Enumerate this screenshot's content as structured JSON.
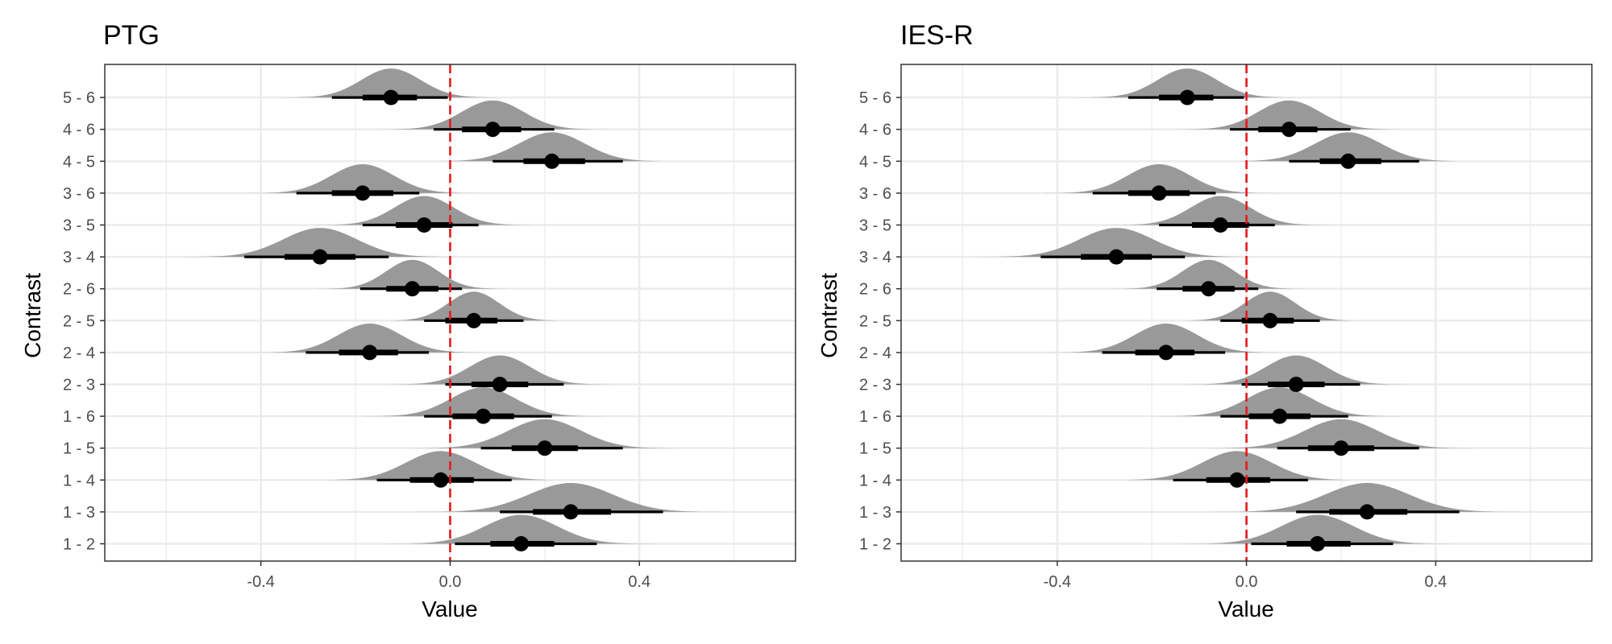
{
  "colors": {
    "density_fill": "#999999",
    "interval": "#000000",
    "reference_line": "#e41a1c",
    "grid_major": "#ebebeb",
    "panel_border": "#333333",
    "background": "#ffffff"
  },
  "chart_data": [
    {
      "type": "halfeye",
      "title": "PTG",
      "xlabel": "Value",
      "ylabel": "Contrast",
      "xlim": [
        -0.73,
        0.73
      ],
      "x_ticks": [
        -0.4,
        0.0,
        0.4
      ],
      "x_tick_labels": [
        "-0.4",
        "0.0",
        "0.4"
      ],
      "reference_x": 0.0,
      "reference_style": "dashed",
      "grid": true,
      "legend": "none",
      "categories": [
        "1 - 2",
        "1 - 3",
        "1 - 4",
        "1 - 5",
        "1 - 6",
        "2 - 3",
        "2 - 4",
        "2 - 5",
        "2 - 6",
        "3 - 4",
        "3 - 5",
        "3 - 6",
        "4 - 5",
        "4 - 6",
        "5 - 6"
      ],
      "median": [
        0.15,
        0.255,
        -0.02,
        0.2,
        0.07,
        0.105,
        -0.17,
        0.05,
        -0.08,
        -0.275,
        -0.055,
        -0.185,
        0.215,
        0.09,
        -0.125
      ],
      "interval_66": [
        [
          0.085,
          0.22
        ],
        [
          0.175,
          0.34
        ],
        [
          -0.085,
          0.05
        ],
        [
          0.13,
          0.27
        ],
        [
          0.005,
          0.135
        ],
        [
          0.045,
          0.165
        ],
        [
          -0.235,
          -0.11
        ],
        [
          -0.01,
          0.1
        ],
        [
          -0.135,
          -0.025
        ],
        [
          -0.35,
          -0.2
        ],
        [
          -0.115,
          0.005
        ],
        [
          -0.25,
          -0.12
        ],
        [
          0.155,
          0.285
        ],
        [
          0.025,
          0.15
        ],
        [
          -0.185,
          -0.07
        ]
      ],
      "interval_95": [
        [
          0.01,
          0.31
        ],
        [
          0.105,
          0.45
        ],
        [
          -0.155,
          0.13
        ],
        [
          0.065,
          0.365
        ],
        [
          -0.055,
          0.215
        ],
        [
          -0.01,
          0.24
        ],
        [
          -0.305,
          -0.045
        ],
        [
          -0.055,
          0.155
        ],
        [
          -0.19,
          0.025
        ],
        [
          -0.435,
          -0.13
        ],
        [
          -0.185,
          0.06
        ],
        [
          -0.325,
          -0.065
        ],
        [
          0.09,
          0.365
        ],
        [
          -0.035,
          0.22
        ],
        [
          -0.25,
          -0.005
        ]
      ]
    },
    {
      "type": "halfeye",
      "title": "IES-R",
      "xlabel": "Value",
      "ylabel": "Contrast",
      "xlim": [
        -0.73,
        0.73
      ],
      "x_ticks": [
        -0.4,
        0.0,
        0.4
      ],
      "x_tick_labels": [
        "-0.4",
        "0.0",
        "0.4"
      ],
      "reference_x": 0.0,
      "reference_style": "dashed",
      "grid": true,
      "legend": "none",
      "categories": [
        "1 - 2",
        "1 - 3",
        "1 - 4",
        "1 - 5",
        "1 - 6",
        "2 - 3",
        "2 - 4",
        "2 - 5",
        "2 - 6",
        "3 - 4",
        "3 - 5",
        "3 - 6",
        "4 - 5",
        "4 - 6",
        "5 - 6"
      ],
      "median": [
        0.15,
        0.255,
        -0.02,
        0.2,
        0.07,
        0.105,
        -0.17,
        0.05,
        -0.08,
        -0.275,
        -0.055,
        -0.185,
        0.215,
        0.09,
        -0.125
      ],
      "interval_66": [
        [
          0.085,
          0.22
        ],
        [
          0.175,
          0.34
        ],
        [
          -0.085,
          0.05
        ],
        [
          0.13,
          0.27
        ],
        [
          0.005,
          0.135
        ],
        [
          0.045,
          0.165
        ],
        [
          -0.235,
          -0.11
        ],
        [
          -0.01,
          0.1
        ],
        [
          -0.135,
          -0.025
        ],
        [
          -0.35,
          -0.2
        ],
        [
          -0.115,
          0.005
        ],
        [
          -0.25,
          -0.12
        ],
        [
          0.155,
          0.285
        ],
        [
          0.025,
          0.15
        ],
        [
          -0.185,
          -0.07
        ]
      ],
      "interval_95": [
        [
          0.01,
          0.31
        ],
        [
          0.105,
          0.45
        ],
        [
          -0.155,
          0.13
        ],
        [
          0.065,
          0.365
        ],
        [
          -0.055,
          0.215
        ],
        [
          -0.01,
          0.24
        ],
        [
          -0.305,
          -0.045
        ],
        [
          -0.055,
          0.155
        ],
        [
          -0.19,
          0.025
        ],
        [
          -0.435,
          -0.13
        ],
        [
          -0.185,
          0.06
        ],
        [
          -0.325,
          -0.065
        ],
        [
          0.09,
          0.365
        ],
        [
          -0.035,
          0.22
        ],
        [
          -0.25,
          -0.005
        ]
      ]
    }
  ]
}
